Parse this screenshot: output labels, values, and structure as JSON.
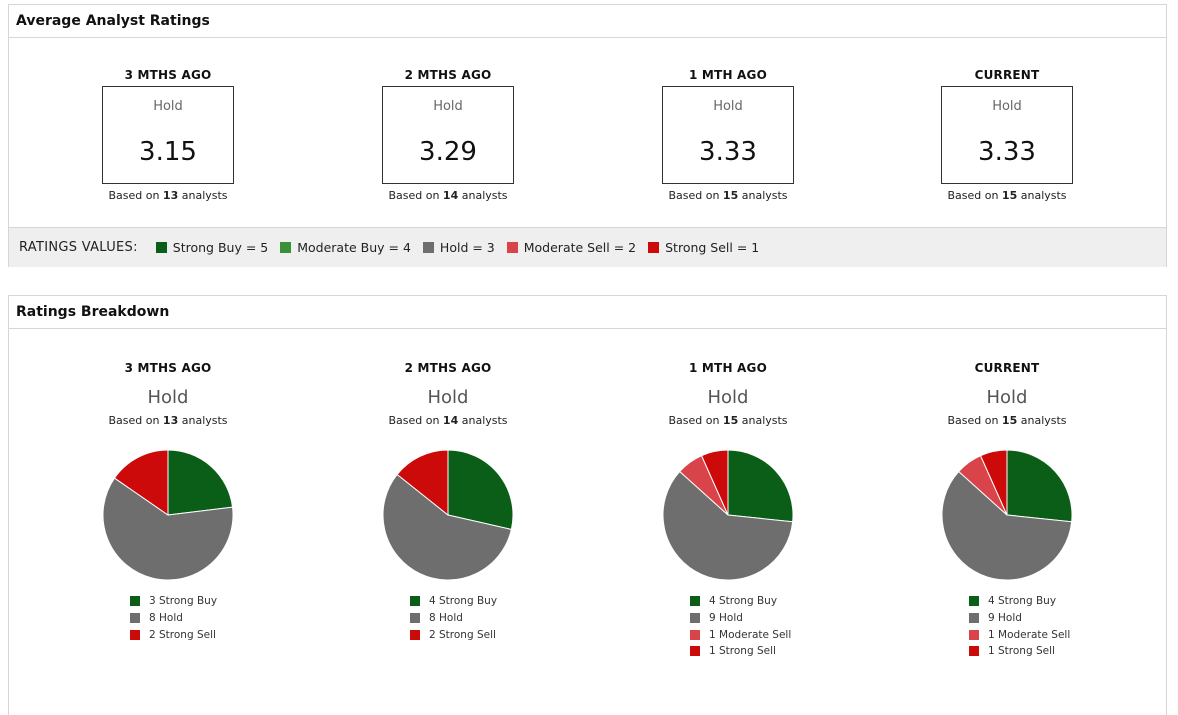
{
  "average_panel": {
    "title": "Average Analyst Ratings",
    "periods": [
      {
        "label": "3 MTHS AGO",
        "rating": "Hold",
        "score": "3.15",
        "based_prefix": "Based on",
        "analysts": "13",
        "based_suffix": "analysts"
      },
      {
        "label": "2 MTHS AGO",
        "rating": "Hold",
        "score": "3.29",
        "based_prefix": "Based on",
        "analysts": "14",
        "based_suffix": "analysts"
      },
      {
        "label": "1 MTH AGO",
        "rating": "Hold",
        "score": "3.33",
        "based_prefix": "Based on",
        "analysts": "15",
        "based_suffix": "analysts"
      },
      {
        "label": "CURRENT",
        "rating": "Hold",
        "score": "3.33",
        "based_prefix": "Based on",
        "analysts": "15",
        "based_suffix": "analysts"
      }
    ],
    "legend_title": "RATINGS VALUES:",
    "legend": [
      {
        "label": "Strong Buy = 5",
        "color": "#0b5e17"
      },
      {
        "label": "Moderate Buy = 4",
        "color": "#3a8f3a"
      },
      {
        "label": "Hold = 3",
        "color": "#6e6e6e"
      },
      {
        "label": "Moderate Sell = 2",
        "color": "#d9434a"
      },
      {
        "label": "Strong Sell = 1",
        "color": "#cc0a0a"
      }
    ]
  },
  "breakdown_panel": {
    "title": "Ratings Breakdown",
    "periods": [
      {
        "label": "3 MTHS AGO",
        "rating": "Hold",
        "based_prefix": "Based on",
        "analysts": "13",
        "based_suffix": "analysts",
        "legend": [
          "3 Strong Buy",
          "8 Hold",
          "2 Strong Sell"
        ]
      },
      {
        "label": "2 MTHS AGO",
        "rating": "Hold",
        "based_prefix": "Based on",
        "analysts": "14",
        "based_suffix": "analysts",
        "legend": [
          "4 Strong Buy",
          "8 Hold",
          "2 Strong Sell"
        ]
      },
      {
        "label": "1 MTH AGO",
        "rating": "Hold",
        "based_prefix": "Based on",
        "analysts": "15",
        "based_suffix": "analysts",
        "legend": [
          "4 Strong Buy",
          "9 Hold",
          "1 Moderate Sell",
          "1 Strong Sell"
        ]
      },
      {
        "label": "CURRENT",
        "rating": "Hold",
        "based_prefix": "Based on",
        "analysts": "15",
        "based_suffix": "analysts",
        "legend": [
          "4 Strong Buy",
          "9 Hold",
          "1 Moderate Sell",
          "1 Strong Sell"
        ]
      }
    ]
  },
  "colors": {
    "Strong Buy": "#0b5e17",
    "Moderate Buy": "#3a8f3a",
    "Hold": "#6e6e6e",
    "Moderate Sell": "#d9434a",
    "Strong Sell": "#cc0a0a"
  },
  "chart_data": [
    {
      "type": "pie",
      "title": "3 MTHS AGO",
      "categories": [
        "Strong Buy",
        "Hold",
        "Strong Sell"
      ],
      "values": [
        3,
        8,
        2
      ]
    },
    {
      "type": "pie",
      "title": "2 MTHS AGO",
      "categories": [
        "Strong Buy",
        "Hold",
        "Strong Sell"
      ],
      "values": [
        4,
        8,
        2
      ]
    },
    {
      "type": "pie",
      "title": "1 MTH AGO",
      "categories": [
        "Strong Buy",
        "Hold",
        "Moderate Sell",
        "Strong Sell"
      ],
      "values": [
        4,
        9,
        1,
        1
      ]
    },
    {
      "type": "pie",
      "title": "CURRENT",
      "categories": [
        "Strong Buy",
        "Hold",
        "Moderate Sell",
        "Strong Sell"
      ],
      "values": [
        4,
        9,
        1,
        1
      ]
    }
  ]
}
